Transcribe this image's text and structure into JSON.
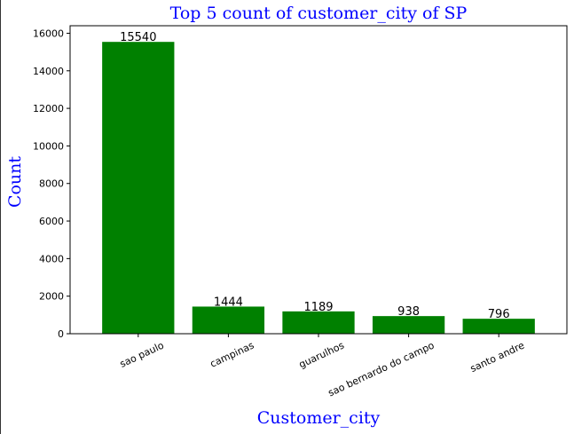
{
  "chart_data": {
    "type": "bar",
    "title": "Top 5 count of customer_city of SP",
    "xlabel": "Customer_city",
    "ylabel": "Count",
    "categories": [
      "sao paulo",
      "campinas",
      "guarulhos",
      "sao bernardo do campo",
      "santo andre"
    ],
    "values": [
      15540,
      1444,
      1189,
      938,
      796
    ],
    "data_labels": [
      "15540",
      "1444",
      "1189",
      "938",
      "796"
    ],
    "ylim": [
      0,
      16400
    ],
    "yticks": [
      0,
      2000,
      4000,
      6000,
      8000,
      10000,
      12000,
      14000,
      16000
    ],
    "bar_color": "#008000",
    "title_color": "#0000ff",
    "label_color": "#0000ff",
    "grid": false,
    "x_tick_rotation_deg": 25
  }
}
